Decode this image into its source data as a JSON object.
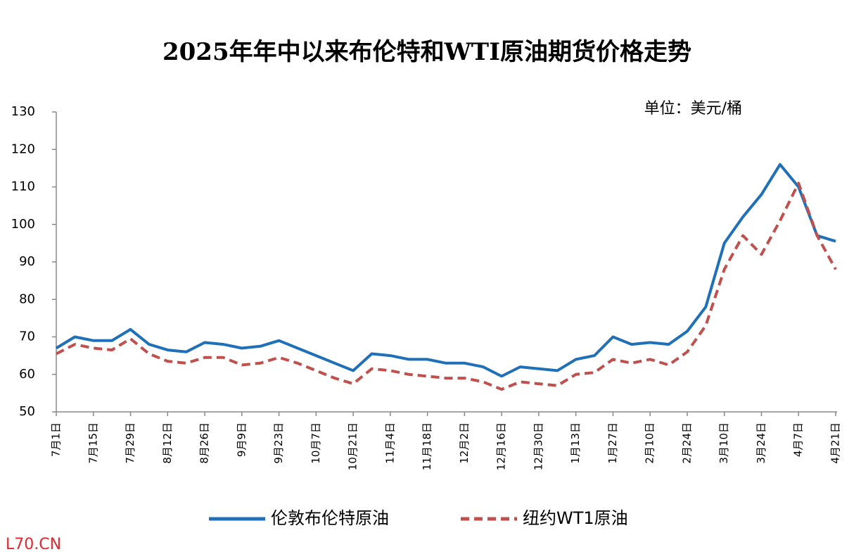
{
  "chart_data": {
    "type": "line",
    "title": "2025年年中以来布伦特和WTI原油期货价格走势",
    "unit_label": "单位：美元/桶",
    "watermark": "L70.CN",
    "categories": [
      "7月1日",
      null,
      "7月15日",
      null,
      "7月29日",
      null,
      "8月12日",
      null,
      "8月26日",
      null,
      "9月9日",
      null,
      "9月23日",
      null,
      "10月7日",
      null,
      "10月21日",
      null,
      "11月4日",
      null,
      "11月18日",
      null,
      "12月2日",
      null,
      "12月16日",
      null,
      "12月30日",
      null,
      "1月13日",
      null,
      "1月27日",
      null,
      "2月10日",
      null,
      "2月24日",
      null,
      "3月10日",
      null,
      "3月24日",
      null,
      "4月7日",
      null,
      "4月21日"
    ],
    "series": [
      {
        "name": "伦敦布伦特原油",
        "color": "#1f70b8",
        "dash": false,
        "values": [
          67,
          70,
          69,
          69,
          72,
          68,
          66.5,
          66,
          68.5,
          68,
          67,
          67.5,
          69,
          67,
          65,
          63,
          61,
          65.5,
          65,
          64,
          64,
          63,
          63,
          62,
          59.5,
          62,
          61.5,
          61,
          64,
          65,
          70,
          68,
          68.5,
          68,
          71.5,
          78,
          95,
          102,
          108,
          116,
          110,
          97,
          95.5
        ]
      },
      {
        "name": "纽约WT1原油",
        "color": "#c0504d",
        "dash": true,
        "values": [
          65.5,
          68,
          67,
          66.5,
          69.5,
          65.5,
          63.5,
          63,
          64.5,
          64.5,
          62.5,
          63,
          64.5,
          63,
          61,
          59,
          57.5,
          61.5,
          61,
          60,
          59.5,
          59,
          59,
          58,
          56,
          58,
          57.5,
          57,
          60,
          60.5,
          64,
          63,
          64,
          62.5,
          66,
          73,
          88,
          97,
          92,
          101,
          111,
          97,
          88
        ]
      }
    ],
    "ylim": [
      50,
      130
    ],
    "yticks": [
      50,
      60,
      70,
      80,
      90,
      100,
      110,
      120,
      130
    ],
    "grid": false,
    "legend": "bottom"
  }
}
